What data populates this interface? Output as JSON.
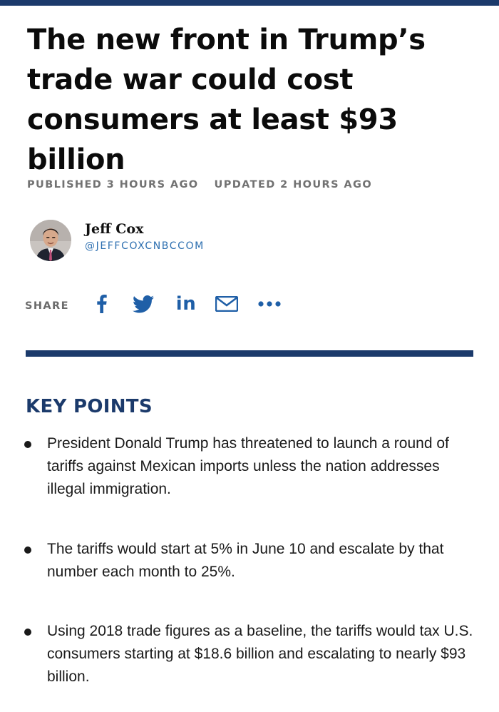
{
  "header": {
    "accent_color": "#1b3a6b"
  },
  "article": {
    "headline": "The new front in Trump’s trade war could cost consumers at least $93 billion",
    "published": "PUBLISHED 3 HOURS AGO",
    "updated": "UPDATED 2 HOURS AGO"
  },
  "author": {
    "name": "Jeff Cox",
    "handle": "@JEFFCOXCNBCCOM",
    "avatar_icon": "author-photo"
  },
  "share": {
    "label": "SHARE",
    "link_color": "#1f5fa7",
    "linkedin_text": "in",
    "icons": [
      "facebook-icon",
      "twitter-icon",
      "linkedin-icon",
      "email-icon",
      "more-icon"
    ]
  },
  "key_points": {
    "heading": "KEY POINTS",
    "items": [
      "President Donald Trump has threatened to launch a round of tariffs against Mexican imports unless the nation addresses illegal immigration.",
      "The tariffs would start at 5% in June 10 and escalate by that number each month to 25%.",
      "Using 2018 trade figures as a baseline, the tariffs would tax U.S. consumers starting at $18.6 billion and escalating to nearly $93 billion."
    ]
  }
}
